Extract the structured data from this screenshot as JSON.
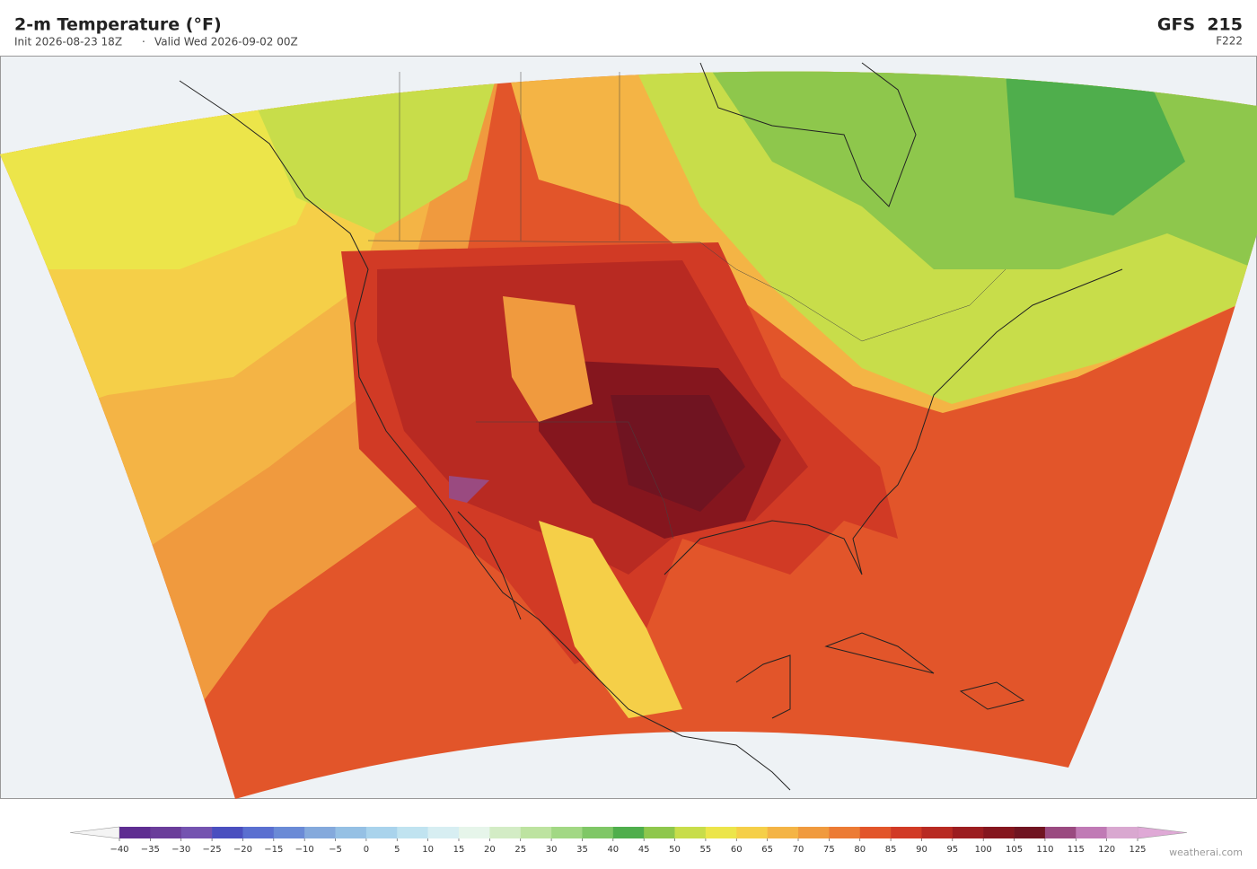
{
  "header": {
    "title": "2-m Temperature  (°F)",
    "init": "Init 2026-08-23 18Z",
    "separator": "·",
    "valid": "Valid Wed 2026-09-02 00Z",
    "model": "GFS  215",
    "forecast_hour": "F222"
  },
  "colorbar": {
    "ticks": [
      {
        "value": -40,
        "label": "−40"
      },
      {
        "value": -35,
        "label": "−35"
      },
      {
        "value": -30,
        "label": "−30"
      },
      {
        "value": -25,
        "label": "−25"
      },
      {
        "value": -20,
        "label": "−20"
      },
      {
        "value": -15,
        "label": "−15"
      },
      {
        "value": -10,
        "label": "−10"
      },
      {
        "value": -5,
        "label": "−5"
      },
      0,
      5,
      10,
      15,
      20,
      25,
      30,
      35,
      40,
      45,
      50,
      55,
      60,
      65,
      70,
      75,
      80,
      85,
      90,
      95,
      100,
      105,
      110,
      115,
      120,
      125
    ],
    "colors": [
      "#5e2d91",
      "#6a3d9a",
      "#7453b0",
      "#4a4fbf",
      "#5a6fd0",
      "#6a8ad6",
      "#84a9dc",
      "#95c0e4",
      "#a9d3ec",
      "#c0e3f0",
      "#d7eef2",
      "#e6f5ea",
      "#d3ecc5",
      "#bde3a0",
      "#a2d884",
      "#7fc766",
      "#4fae4c",
      "#8ec74c",
      "#c8dd4a",
      "#ece54a",
      "#f5cf48",
      "#f4b445",
      "#f09a3e",
      "#ec7b34",
      "#e2552a",
      "#d13a25",
      "#b82a22",
      "#9c1d20",
      "#85161e",
      "#701421",
      "#9a4a80",
      "#c07ab5",
      "#d9a8d0"
    ],
    "under_color": "#f4f4f4",
    "over_color": "#dfa9d6"
  },
  "footer": {
    "credit": "weatherai.com"
  }
}
